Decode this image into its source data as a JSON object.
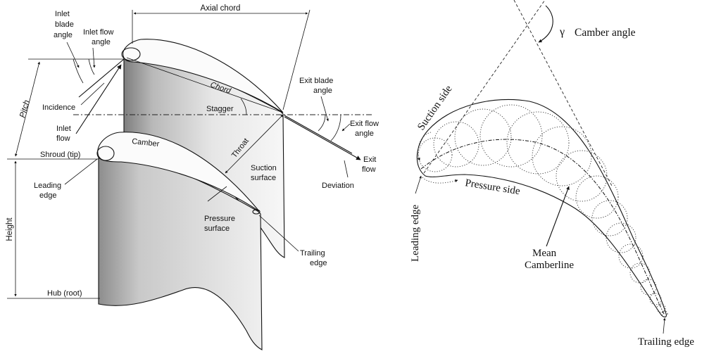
{
  "left_figure": {
    "labels": {
      "axial_chord": "Axial chord",
      "inlet_blade_angle": [
        "Inlet",
        "blade",
        "angle"
      ],
      "inlet_flow_angle": [
        "Inlet flow",
        "angle"
      ],
      "pitch": "Pitch",
      "incidence": "Incidence",
      "inlet_flow": [
        "Inlet",
        "flow"
      ],
      "chord": "Chord",
      "stagger": "Stagger",
      "exit_blade_angle": [
        "Exit blade",
        "angle"
      ],
      "exit_flow_angle": [
        "Exit flow",
        "angle"
      ],
      "exit_flow": [
        "Exit",
        "flow"
      ],
      "deviation": "Deviation",
      "camber": "Camber",
      "throat": "Throat",
      "suction_surface": [
        "Suction",
        "surface"
      ],
      "shroud": "Shroud (tip)",
      "leading_edge": [
        "Leading",
        "edge"
      ],
      "pressure_surface": [
        "Pressure",
        "surface"
      ],
      "trailing_edge": [
        "Trailing",
        "edge"
      ],
      "height": "Height",
      "hub": "Hub (root)"
    }
  },
  "right_figure": {
    "labels": {
      "gamma": "γ",
      "camber_angle": "Camber angle",
      "suction_side": "Suction side",
      "pressure_side": "Pressure side",
      "leading_edge": "Leading edge",
      "mean_camberline": [
        "Mean",
        "Camberline"
      ],
      "trailing_edge": "Trailing edge"
    }
  },
  "colors": {
    "ink": "#111111",
    "blade_light": "#f2f2f2",
    "blade_dark": "#8a8a8a"
  }
}
